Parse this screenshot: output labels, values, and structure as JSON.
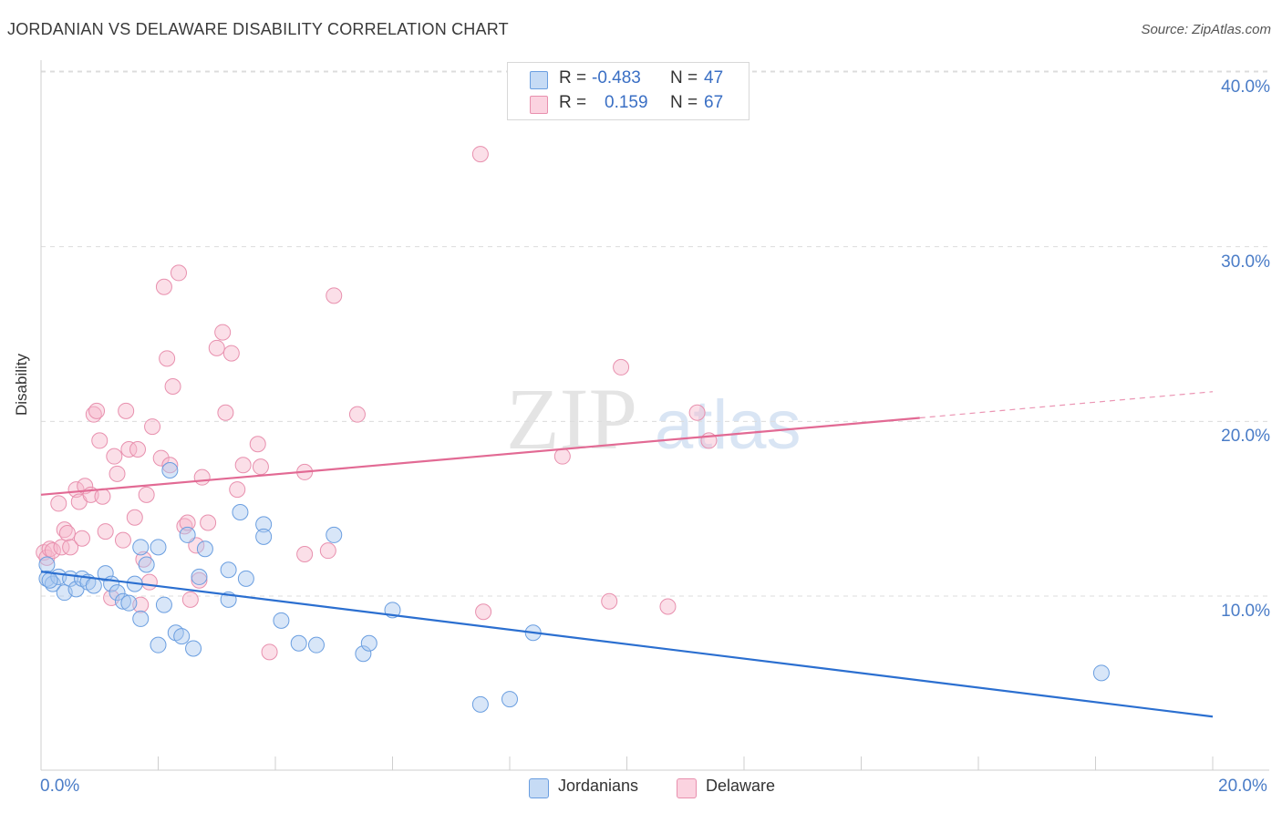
{
  "header": {
    "title": "JORDANIAN VS DELAWARE DISABILITY CORRELATION CHART",
    "source": "Source: ZipAtlas.com"
  },
  "watermark": {
    "zip": "ZIP",
    "atlas": "atlas"
  },
  "stats": {
    "row1": {
      "r_label": "R =",
      "r_value": "-0.483",
      "n_label": "N =",
      "n_value": "47",
      "color": "#a9c8f0"
    },
    "row2": {
      "r_label": "R =",
      "r_value": "0.159",
      "n_label": "N =",
      "n_value": "67",
      "color": "#f7b8cc"
    }
  },
  "legend": {
    "jordanians": "Jordanians",
    "delaware": "Delaware"
  },
  "colors": {
    "blue_fill": "#a9c8f0",
    "blue_stroke": "#6a9ee0",
    "blue_line": "#2b6fd0",
    "pink_fill": "#f7b8cc",
    "pink_stroke": "#e890ae",
    "pink_line": "#e26a94"
  },
  "chart_data": {
    "type": "scatter",
    "title": "JORDANIAN VS DELAWARE DISABILITY CORRELATION CHART",
    "xlabel": "",
    "ylabel": "Disability",
    "xlim": [
      0,
      20
    ],
    "ylim": [
      0,
      40.8
    ],
    "x_tick_labels": [
      "0.0%",
      "20.0%"
    ],
    "y_ticks": [
      10,
      20,
      30,
      40
    ],
    "y_tick_labels": [
      "10.0%",
      "20.0%",
      "30.0%",
      "40.0%"
    ],
    "grid": true,
    "legend_position": "bottom-center",
    "series": [
      {
        "name": "Jordanians",
        "r": -0.483,
        "n": 47,
        "trend": {
          "x": [
            0,
            20
          ],
          "y": [
            11.4,
            3.1
          ]
        },
        "points": [
          [
            0.1,
            11.8
          ],
          [
            0.1,
            11.0
          ],
          [
            0.2,
            10.7
          ],
          [
            0.3,
            11.1
          ],
          [
            0.4,
            10.2
          ],
          [
            0.5,
            11.0
          ],
          [
            0.6,
            10.4
          ],
          [
            0.7,
            11.0
          ],
          [
            0.8,
            10.8
          ],
          [
            0.9,
            10.6
          ],
          [
            1.1,
            11.3
          ],
          [
            1.2,
            10.7
          ],
          [
            1.3,
            10.2
          ],
          [
            1.4,
            9.7
          ],
          [
            1.5,
            9.6
          ],
          [
            1.6,
            10.7
          ],
          [
            1.7,
            8.7
          ],
          [
            1.7,
            12.8
          ],
          [
            1.8,
            11.8
          ],
          [
            2.0,
            12.8
          ],
          [
            2.0,
            7.2
          ],
          [
            2.1,
            9.5
          ],
          [
            2.2,
            17.2
          ],
          [
            2.3,
            7.9
          ],
          [
            2.4,
            7.7
          ],
          [
            2.5,
            13.5
          ],
          [
            2.6,
            7.0
          ],
          [
            2.7,
            11.1
          ],
          [
            2.8,
            12.7
          ],
          [
            3.2,
            11.5
          ],
          [
            3.2,
            9.8
          ],
          [
            3.4,
            14.8
          ],
          [
            3.5,
            11.0
          ],
          [
            3.8,
            14.1
          ],
          [
            3.8,
            13.4
          ],
          [
            4.1,
            8.6
          ],
          [
            4.4,
            7.3
          ],
          [
            4.7,
            7.2
          ],
          [
            5.0,
            13.5
          ],
          [
            5.5,
            6.7
          ],
          [
            5.6,
            7.3
          ],
          [
            6.0,
            9.2
          ],
          [
            7.5,
            3.8
          ],
          [
            8.0,
            4.1
          ],
          [
            8.4,
            7.9
          ],
          [
            18.1,
            5.6
          ],
          [
            0.15,
            10.9
          ]
        ]
      },
      {
        "name": "Delaware",
        "r": 0.159,
        "n": 67,
        "trend": {
          "x": [
            0,
            15
          ],
          "y": [
            15.8,
            20.2
          ]
        },
        "trend_dashed": {
          "x": [
            15,
            20
          ],
          "y": [
            20.2,
            21.7
          ]
        },
        "points": [
          [
            0.05,
            12.5
          ],
          [
            0.1,
            12.2
          ],
          [
            0.15,
            12.7
          ],
          [
            0.2,
            12.6
          ],
          [
            0.3,
            15.3
          ],
          [
            0.35,
            12.8
          ],
          [
            0.4,
            13.8
          ],
          [
            0.45,
            13.6
          ],
          [
            0.5,
            12.8
          ],
          [
            0.6,
            16.1
          ],
          [
            0.65,
            15.4
          ],
          [
            0.7,
            13.3
          ],
          [
            0.75,
            16.3
          ],
          [
            0.85,
            15.8
          ],
          [
            0.9,
            20.4
          ],
          [
            0.95,
            20.6
          ],
          [
            1.0,
            18.9
          ],
          [
            1.05,
            15.7
          ],
          [
            1.1,
            13.7
          ],
          [
            1.2,
            9.9
          ],
          [
            1.25,
            18.0
          ],
          [
            1.3,
            17.0
          ],
          [
            1.4,
            13.2
          ],
          [
            1.45,
            20.6
          ],
          [
            1.5,
            18.4
          ],
          [
            1.6,
            14.5
          ],
          [
            1.65,
            18.4
          ],
          [
            1.7,
            9.5
          ],
          [
            1.75,
            12.1
          ],
          [
            1.8,
            15.8
          ],
          [
            1.85,
            10.8
          ],
          [
            1.9,
            19.7
          ],
          [
            2.05,
            17.9
          ],
          [
            2.1,
            27.7
          ],
          [
            2.15,
            23.6
          ],
          [
            2.2,
            17.5
          ],
          [
            2.25,
            22.0
          ],
          [
            2.35,
            28.5
          ],
          [
            2.45,
            14.0
          ],
          [
            2.5,
            14.2
          ],
          [
            2.55,
            9.8
          ],
          [
            2.65,
            12.9
          ],
          [
            2.7,
            10.9
          ],
          [
            2.75,
            16.8
          ],
          [
            2.85,
            14.2
          ],
          [
            3.0,
            24.2
          ],
          [
            3.1,
            25.1
          ],
          [
            3.15,
            20.5
          ],
          [
            3.25,
            23.9
          ],
          [
            3.35,
            16.1
          ],
          [
            3.45,
            17.5
          ],
          [
            3.7,
            18.7
          ],
          [
            3.75,
            17.4
          ],
          [
            3.9,
            6.8
          ],
          [
            4.5,
            17.1
          ],
          [
            4.5,
            12.4
          ],
          [
            4.9,
            12.6
          ],
          [
            5.0,
            27.2
          ],
          [
            5.4,
            20.4
          ],
          [
            7.5,
            35.3
          ],
          [
            7.55,
            9.1
          ],
          [
            8.9,
            18.0
          ],
          [
            9.7,
            9.7
          ],
          [
            9.9,
            23.1
          ],
          [
            10.7,
            9.4
          ],
          [
            11.2,
            20.5
          ],
          [
            11.4,
            18.9
          ]
        ]
      }
    ]
  }
}
